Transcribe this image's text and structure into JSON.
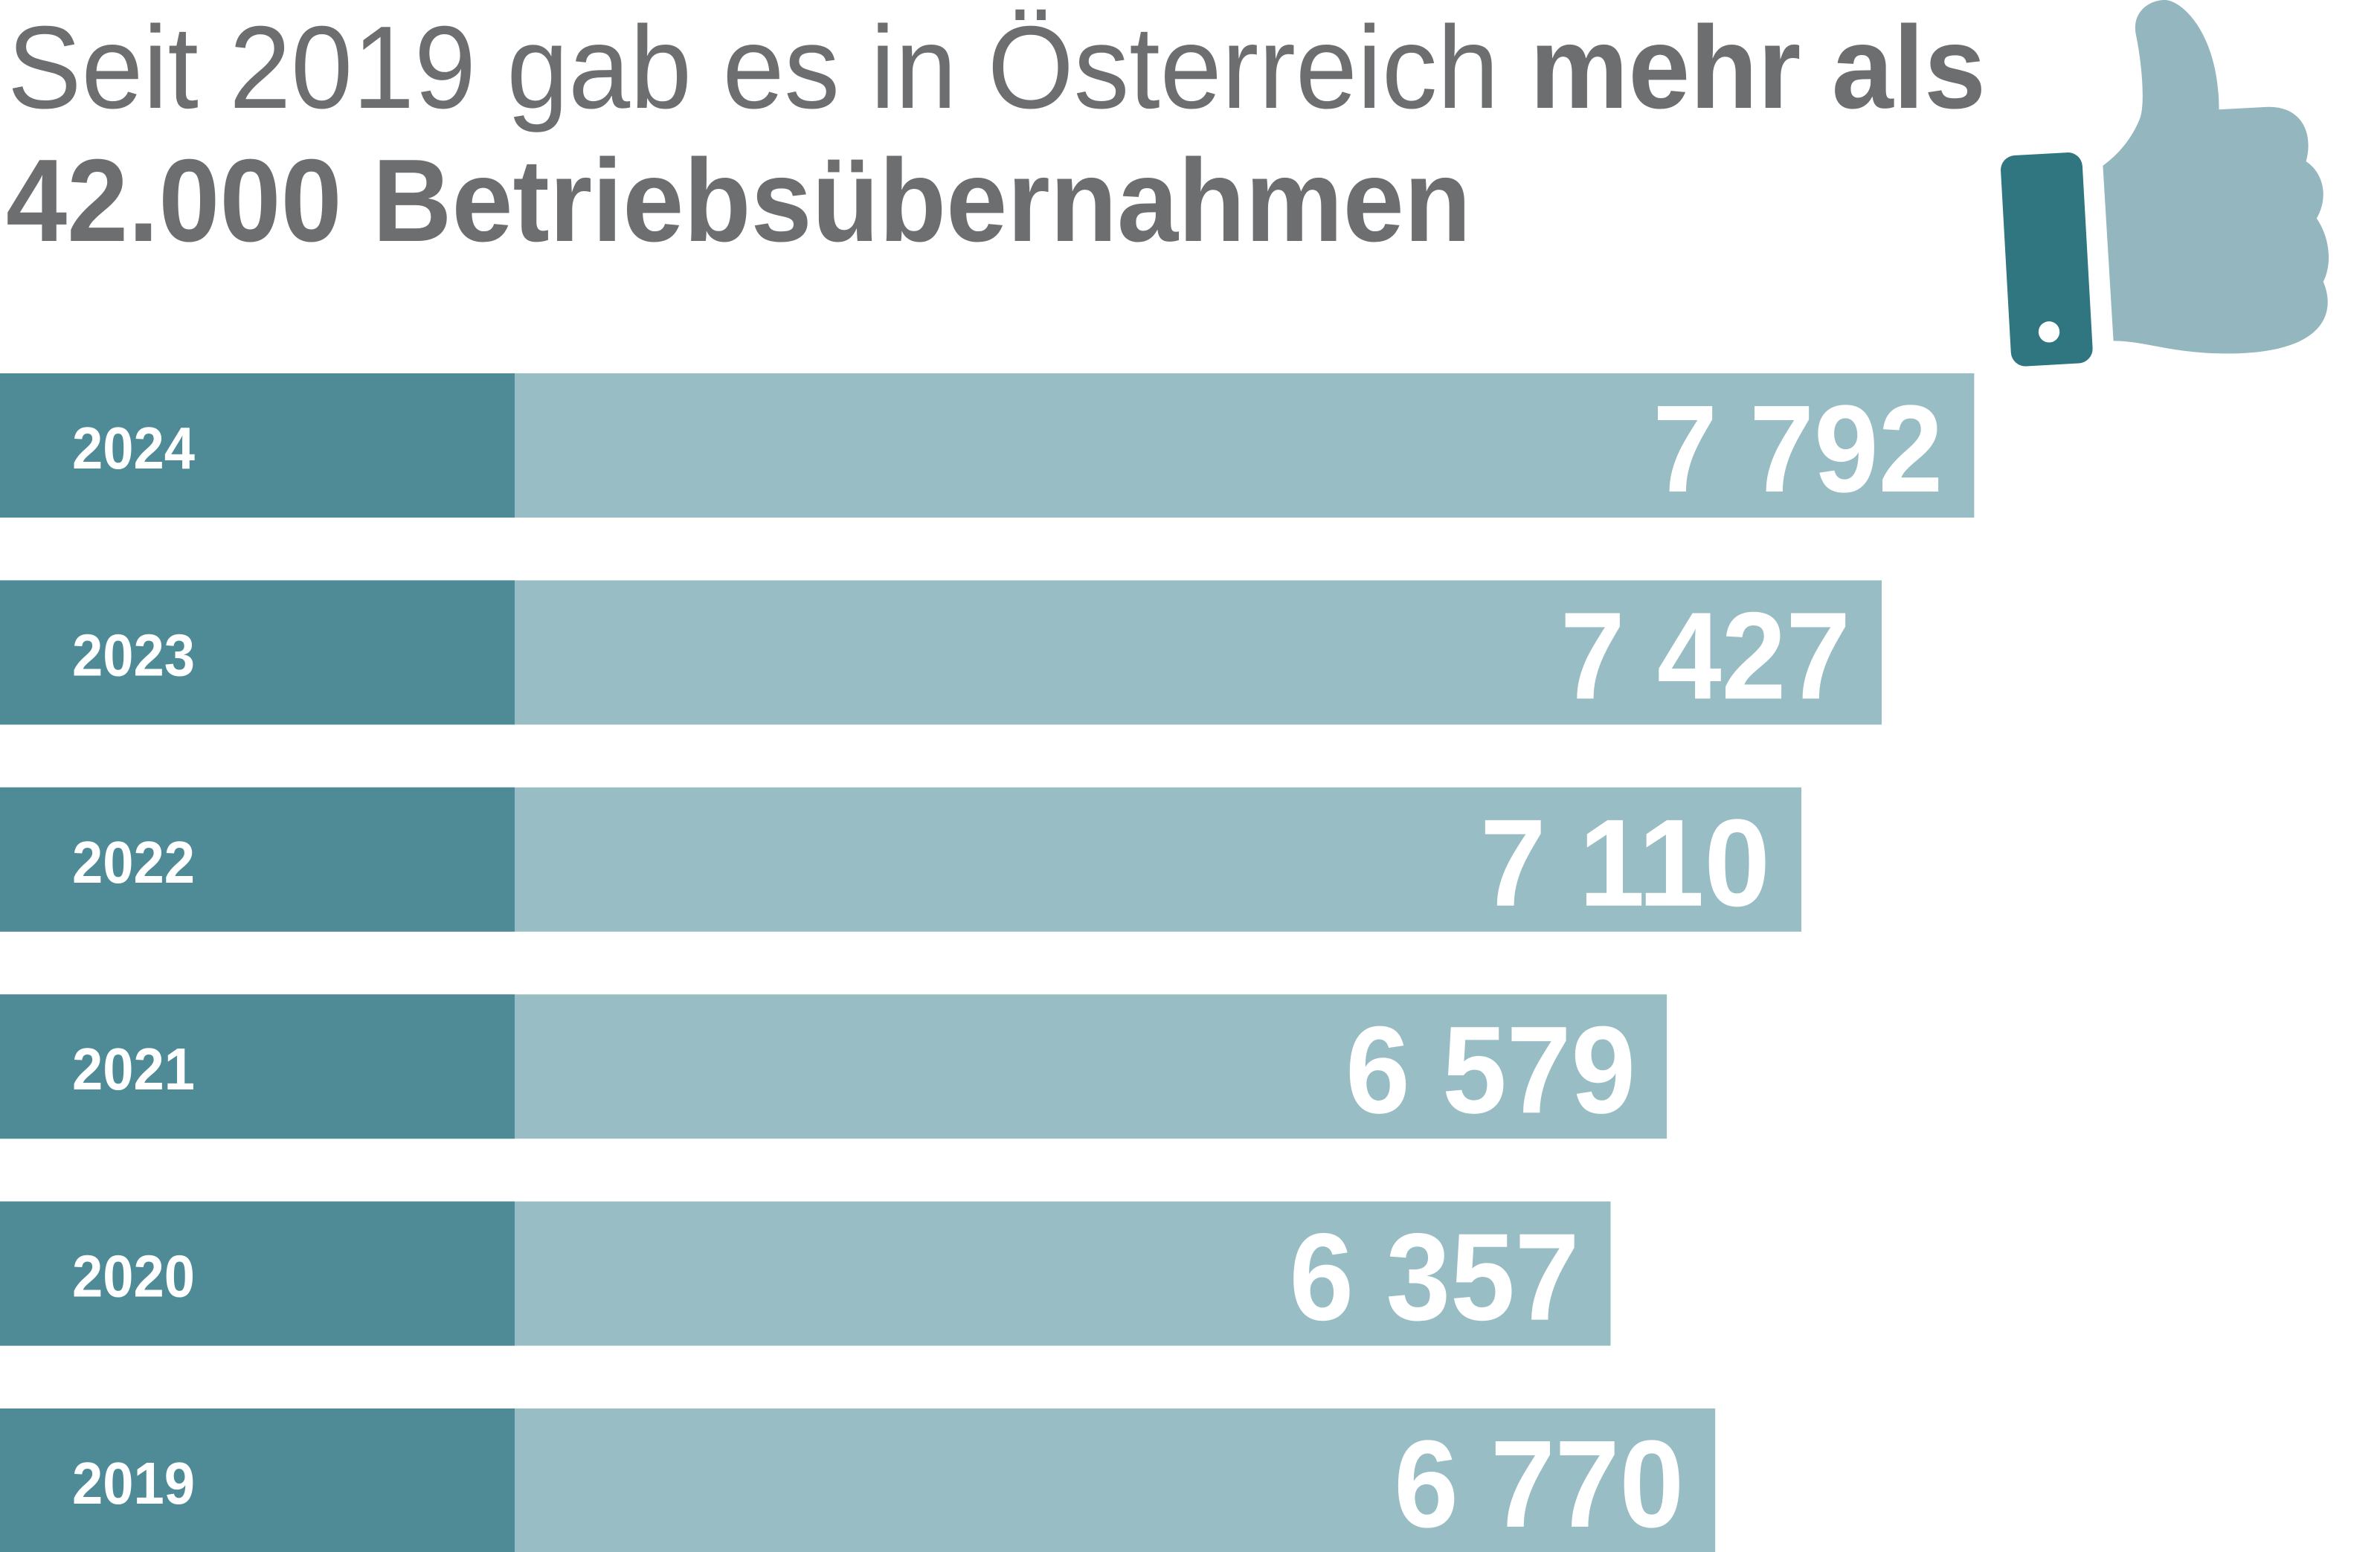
{
  "title": {
    "line1_normal": "Seit 2019 gab es in Österreich ",
    "line1_bold": "mehr als",
    "line2_bold": "42.000 Betriebsübernahmen"
  },
  "icon": "thumbs-up-icon",
  "colors": {
    "title_text": "#6d6e70",
    "bar_label_segment": "#4f8b97",
    "bar_fill": "#98bdc4",
    "thumb_hand": "#94b7bf",
    "thumb_cuff": "#2f7681",
    "value_text": "#ffffff"
  },
  "chart_data": {
    "type": "bar",
    "orientation": "horizontal",
    "categories": [
      "2024",
      "2023",
      "2022",
      "2021",
      "2020",
      "2019"
    ],
    "values": [
      7792,
      7427,
      7110,
      6579,
      6357,
      6770
    ],
    "value_labels": [
      "7 792",
      "7 427",
      "7 110",
      "6 579",
      "6 357",
      "6 770"
    ],
    "title": "",
    "xlabel": "",
    "ylabel": "",
    "grid": false,
    "legend": "none",
    "data_labels": "inside-end"
  }
}
